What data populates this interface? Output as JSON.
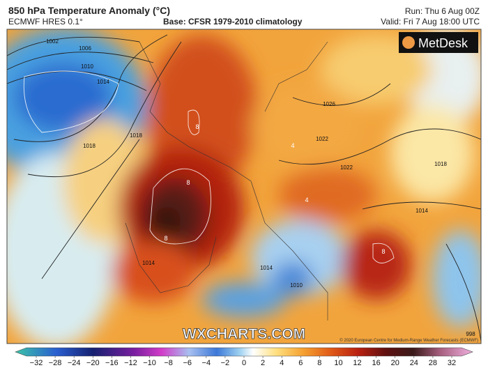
{
  "header": {
    "title": "850 hPa Temperature Anomaly (°C)",
    "model": "ECMWF HRES 0.1°",
    "base": "Base: CFSR 1979-2010 climatology",
    "run": "Run: Thu 6 Aug 00Z",
    "valid": "Valid: Fri 7 Aug 18:00 UTC"
  },
  "logo": "MetDesk",
  "watermark": "WXCHARTS.COM",
  "credit": "© 2020 European Centre for Medium-Range Weather Forecasts (ECMWF)",
  "isobar_labels": [
    "1002",
    "1006",
    "1010",
    "1014",
    "1018",
    "1018",
    "1022",
    "1026",
    "1022",
    "1018",
    "1014",
    "1014",
    "1010",
    "1014",
    "998"
  ],
  "anomaly_labels": [
    "8",
    "8",
    "4",
    "8",
    "8",
    "4"
  ],
  "colorbar": {
    "labels": [
      "−32",
      "−28",
      "−24",
      "−20",
      "−16",
      "−12",
      "−10",
      "−8",
      "−6",
      "−4",
      "−2",
      "0",
      "2",
      "4",
      "6",
      "8",
      "10",
      "12",
      "16",
      "20",
      "24",
      "28",
      "32"
    ]
  }
}
